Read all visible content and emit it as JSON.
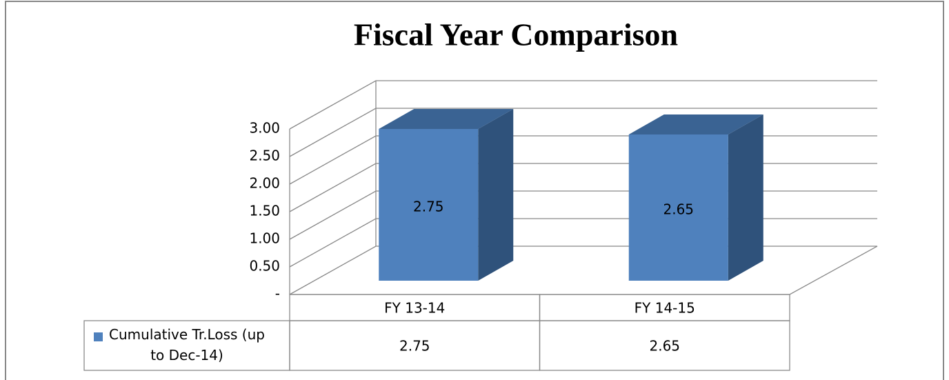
{
  "chart_data": {
    "type": "bar3d",
    "title": "Fiscal Year Comparison",
    "categories": [
      "FY 13-14",
      "FY 14-15"
    ],
    "series": [
      {
        "name": "Cumulative Tr.Loss (up to Dec-14)",
        "color": "#4f81bd",
        "values": [
          2.75,
          2.65
        ]
      }
    ],
    "ylim": [
      0,
      3
    ],
    "yticks": [
      {
        "value": 0,
        "label": "-"
      },
      {
        "value": 0.5,
        "label": "0.50"
      },
      {
        "value": 1,
        "label": "1.00"
      },
      {
        "value": 1.5,
        "label": "1.50"
      },
      {
        "value": 2,
        "label": "2.00"
      },
      {
        "value": 2.5,
        "label": "2.50"
      },
      {
        "value": 3,
        "label": "3.00"
      }
    ],
    "grid": true,
    "data_table": true
  }
}
